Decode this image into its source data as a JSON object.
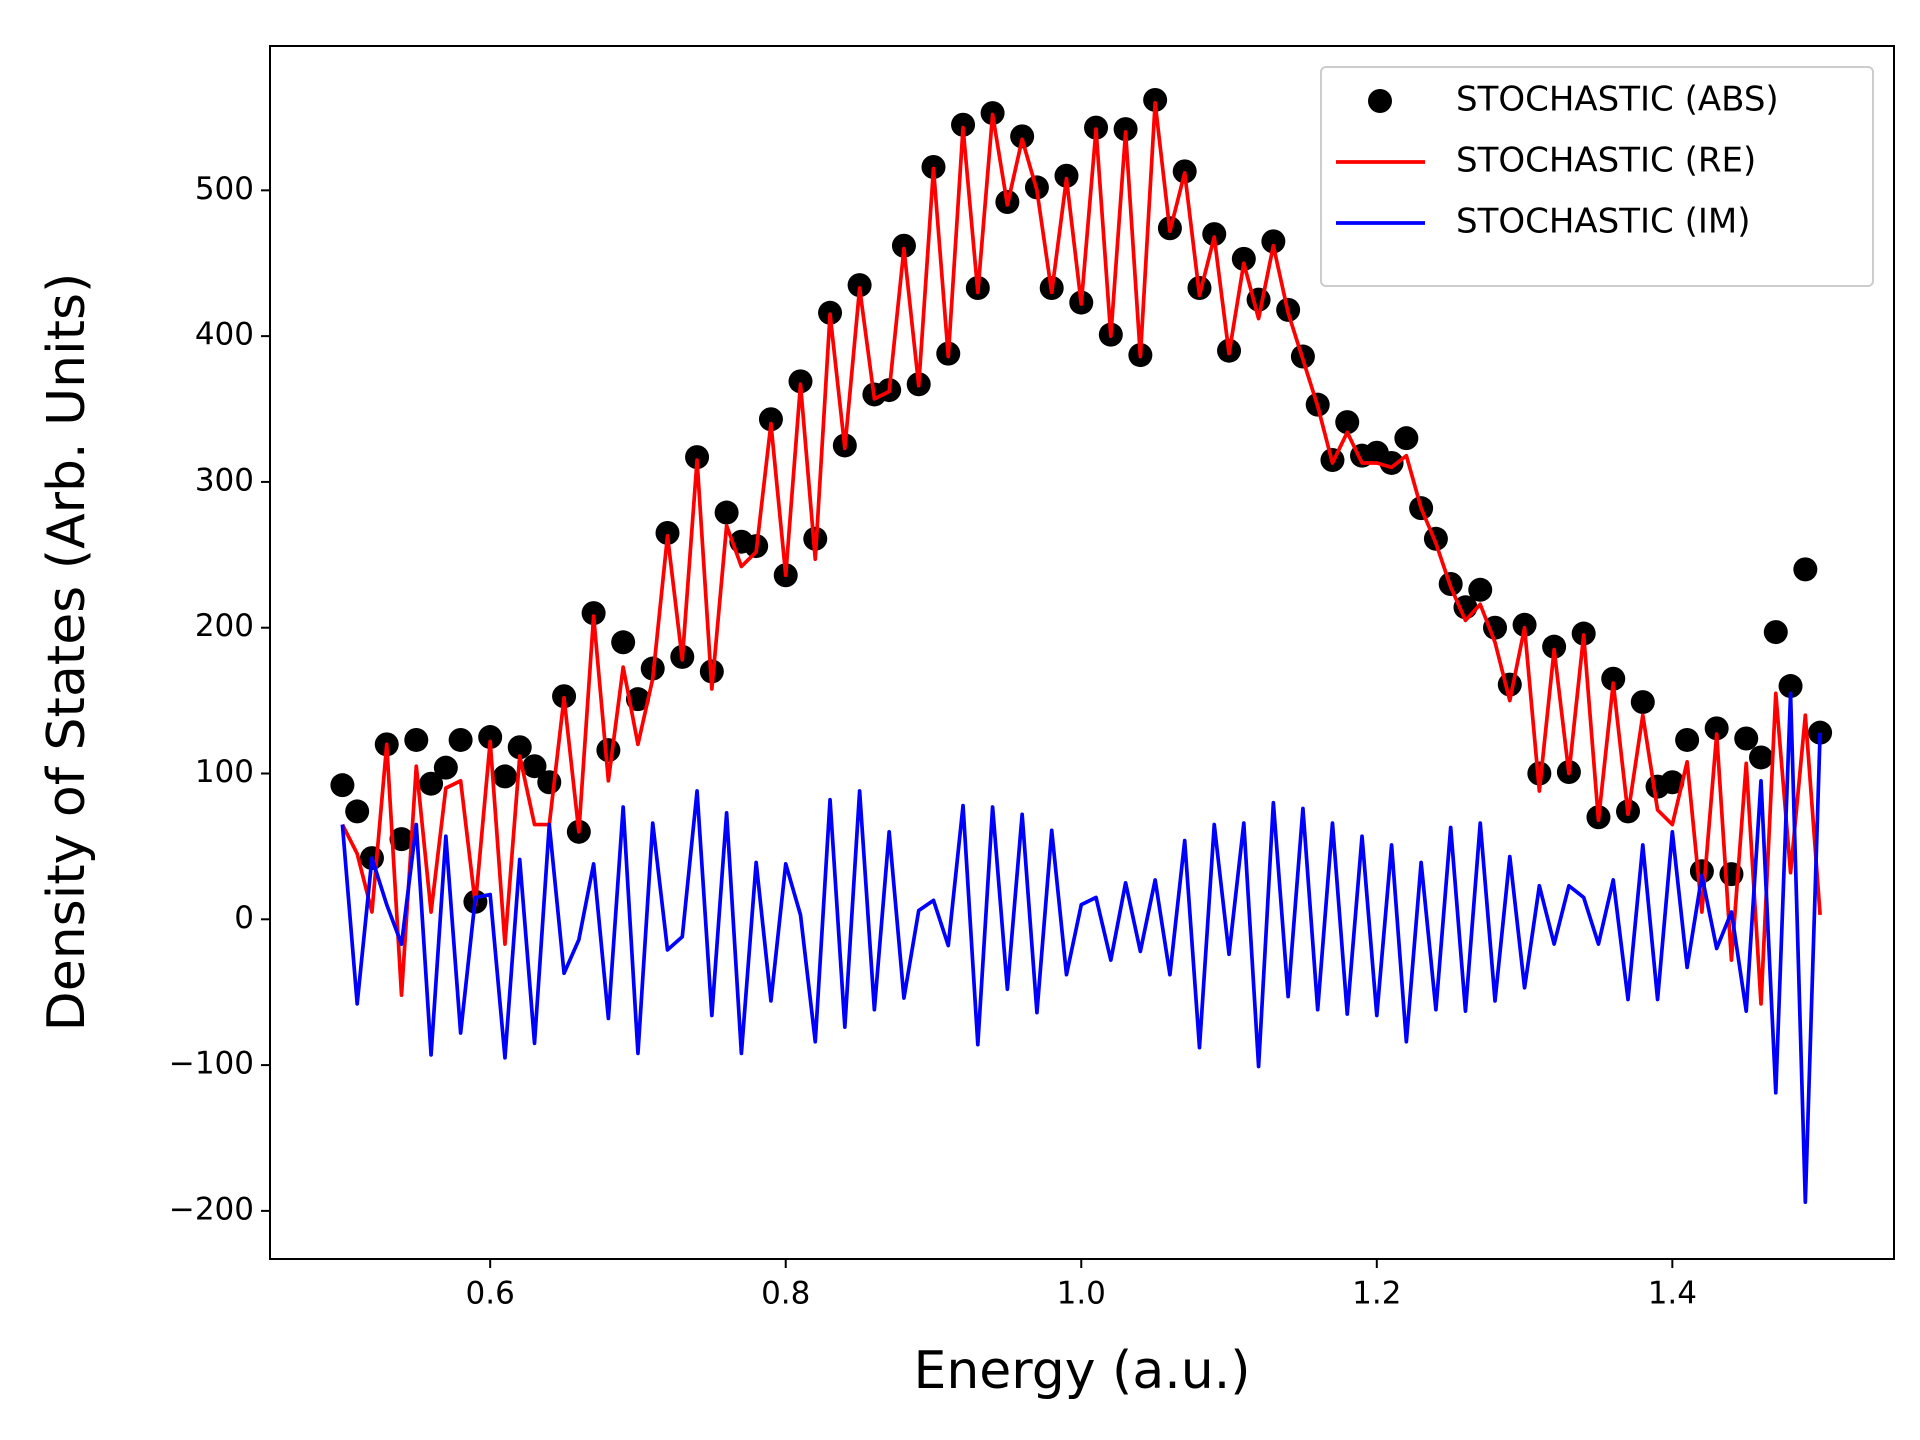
{
  "chart_data": {
    "type": "line",
    "xlabel": "Energy (a.u.)",
    "ylabel": "Density of States (Arb. Units)",
    "x": [
      0.5,
      0.51,
      0.52,
      0.53,
      0.54,
      0.55,
      0.56,
      0.57,
      0.58,
      0.59,
      0.6,
      0.61,
      0.62,
      0.63,
      0.64,
      0.65,
      0.66,
      0.67,
      0.68,
      0.69,
      0.7,
      0.71,
      0.72,
      0.73,
      0.74,
      0.75,
      0.76,
      0.77,
      0.78,
      0.79,
      0.8,
      0.81,
      0.82,
      0.83,
      0.84,
      0.85,
      0.86,
      0.87,
      0.88,
      0.89,
      0.9,
      0.91,
      0.92,
      0.93,
      0.94,
      0.95,
      0.96,
      0.97,
      0.98,
      0.99,
      1.0,
      1.01,
      1.02,
      1.03,
      1.04,
      1.05,
      1.06,
      1.07,
      1.08,
      1.09,
      1.1,
      1.11,
      1.12,
      1.13,
      1.14,
      1.15,
      1.16,
      1.17,
      1.18,
      1.19,
      1.2,
      1.21,
      1.22,
      1.23,
      1.24,
      1.25,
      1.26,
      1.27,
      1.28,
      1.29,
      1.3,
      1.31,
      1.32,
      1.33,
      1.34,
      1.35,
      1.36,
      1.37,
      1.38,
      1.39,
      1.4,
      1.41,
      1.42,
      1.43,
      1.44,
      1.45,
      1.46,
      1.47,
      1.48,
      1.49,
      1.5
    ],
    "series": [
      {
        "name": "STOCHASTIC (ABS)",
        "type": "scatter",
        "color": "#000000",
        "values": [
          92,
          74,
          42,
          120,
          55,
          123,
          93,
          104,
          123,
          12,
          125,
          98,
          118,
          105,
          94,
          153,
          60,
          210,
          116,
          190,
          151,
          172,
          265,
          180,
          317,
          170,
          279,
          259,
          256,
          343,
          236,
          369,
          261,
          416,
          325,
          435,
          360,
          363,
          462,
          367,
          516,
          388,
          545,
          433,
          553,
          492,
          537,
          502,
          433,
          510,
          423,
          543,
          401,
          542,
          387,
          562,
          474,
          513,
          433,
          470,
          390,
          453,
          425,
          465,
          418,
          386,
          353,
          315,
          341,
          318,
          320,
          313,
          330,
          282,
          261,
          230,
          214,
          226,
          200,
          161,
          202,
          100,
          187,
          101,
          196,
          70,
          165,
          74,
          149,
          91,
          94,
          123,
          33,
          131,
          31,
          124,
          111,
          197,
          160,
          240,
          128
        ]
      },
      {
        "name": "STOCHASTIC (RE)",
        "type": "line",
        "color": "#ff0000",
        "values": [
          65,
          45,
          5,
          120,
          -52,
          105,
          5,
          90,
          95,
          10,
          122,
          -17,
          112,
          65,
          65,
          152,
          60,
          208,
          95,
          173,
          120,
          165,
          263,
          178,
          315,
          158,
          270,
          242,
          252,
          340,
          236,
          367,
          247,
          415,
          323,
          433,
          357,
          362,
          460,
          366,
          515,
          386,
          543,
          430,
          552,
          490,
          535,
          500,
          430,
          508,
          422,
          542,
          400,
          540,
          386,
          560,
          472,
          512,
          428,
          468,
          388,
          450,
          412,
          462,
          416,
          384,
          352,
          313,
          334,
          313,
          313,
          310,
          318,
          282,
          258,
          228,
          205,
          216,
          190,
          150,
          200,
          88,
          185,
          100,
          195,
          68,
          162,
          72,
          140,
          75,
          65,
          108,
          5,
          127,
          -28,
          107,
          -58,
          155,
          32,
          140,
          3
        ]
      },
      {
        "name": "STOCHASTIC (IM)",
        "type": "line",
        "color": "#0000ff",
        "values": [
          65,
          -58,
          42,
          10,
          -17,
          65,
          -93,
          57,
          -78,
          15,
          17,
          -95,
          41,
          -85,
          65,
          -37,
          -14,
          38,
          -68,
          77,
          -92,
          66,
          -21,
          -12,
          88,
          -66,
          73,
          -92,
          39,
          -56,
          38,
          3,
          -84,
          82,
          -74,
          88,
          -62,
          60,
          -54,
          6,
          13,
          -18,
          78,
          -86,
          77,
          -48,
          72,
          -64,
          61,
          -38,
          10,
          15,
          -28,
          25,
          -22,
          27,
          -38,
          54,
          -88,
          65,
          -24,
          66,
          -101,
          80,
          -53,
          76,
          -62,
          66,
          -65,
          57,
          -66,
          51,
          -84,
          39,
          -62,
          63,
          -63,
          66,
          -56,
          43,
          -47,
          23,
          -17,
          23,
          15,
          -17,
          27,
          -55,
          51,
          -55,
          60,
          -33,
          30,
          -20,
          5,
          -63,
          95,
          -119,
          155,
          -194,
          128
        ]
      }
    ],
    "xlim": [
      0.451,
      1.55
    ],
    "ylim": [
      -233,
      599
    ],
    "xticks": [
      0.6,
      0.8,
      {
        "value": 1.0,
        "label": "1.0"
      },
      1.2,
      1.4
    ],
    "yticks": [
      {
        "value": -200,
        "label": "−200"
      },
      {
        "value": -100,
        "label": "−100"
      },
      0,
      100,
      200,
      300,
      400,
      500
    ],
    "legend": "upper right",
    "grid": false
  }
}
